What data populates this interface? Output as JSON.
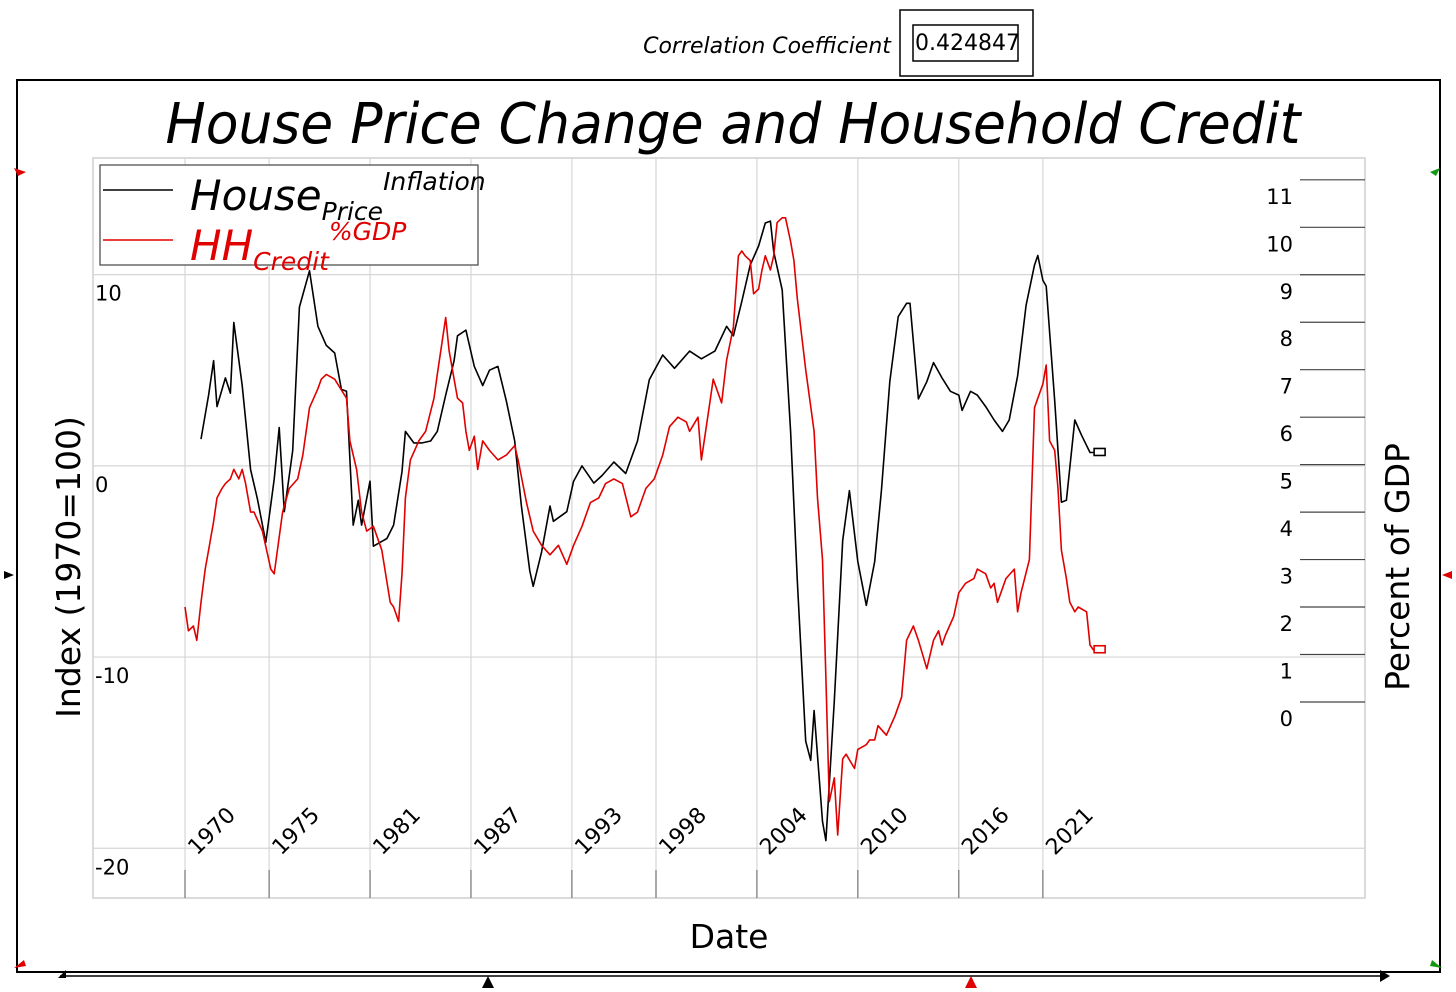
{
  "chart_data": {
    "type": "line",
    "title": "House Price Change and Household Credit",
    "correlation_label": "Correlation Coefficient",
    "correlation_coefficient": 0.424847,
    "x_label": "Date",
    "y_label": "Index (1970=100)",
    "y2_label": "Percent of GDP",
    "xlim": [
      1964.53,
      2040.15
    ],
    "xticks": [
      1970,
      1975,
      1981,
      1987,
      1993,
      1998,
      2004,
      2010,
      2016,
      2021
    ],
    "ylim": [
      -22.6,
      16.1
    ],
    "yticks": [
      -20,
      -10,
      0,
      10
    ],
    "y2lim": [
      -4.13,
      11.46
    ],
    "y2ticks": [
      0,
      1,
      2,
      3,
      4,
      5,
      6,
      7,
      8,
      9,
      10,
      11
    ],
    "grid": true,
    "legend": "upper left",
    "series": [
      {
        "name": "House",
        "subscript": "Price",
        "superscript": "Inflation",
        "color": "#000000",
        "x": [
          1970.95,
          1971.4,
          1971.7,
          1971.9,
          1972.4,
          1972.7,
          1972.9,
          1973.4,
          1973.9,
          1974.3,
          1974.8,
          1975.3,
          1975.6,
          1975.9,
          1976.4,
          1976.8,
          1977.4,
          1977.9,
          1978.4,
          1978.9,
          1979.3,
          1979.6,
          1980.0,
          1980.3,
          1980.5,
          1981.0,
          1981.2,
          1982.0,
          1982.4,
          1982.9,
          1983.1,
          1983.6,
          1984.1,
          1984.6,
          1985.0,
          1985.5,
          1986.0,
          1986.2,
          1986.7,
          1987.2,
          1987.7,
          1988.1,
          1988.6,
          1989.1,
          1989.6,
          1990.0,
          1990.5,
          1990.7,
          1991.2,
          1991.7,
          1991.9,
          1992.7,
          1993.1,
          1993.6,
          1994.3,
          1994.8,
          1995.5,
          1996.2,
          1996.9,
          1997.6,
          1998.4,
          1999.1,
          2000.0,
          2000.7,
          2001.5,
          2002.2,
          2002.6,
          2003.1,
          2003.6,
          2004.1,
          2004.5,
          2004.8,
          2005.0,
          2005.5,
          2006.0,
          2006.4,
          2006.9,
          2007.2,
          2007.4,
          2007.9,
          2008.1,
          2008.6,
          2009.1,
          2009.5,
          2010.0,
          2010.5,
          2011.0,
          2011.4,
          2011.9,
          2012.4,
          2012.9,
          2013.1,
          2013.6,
          2014.1,
          2014.5,
          2015.0,
          2015.5,
          2016.0,
          2016.2,
          2016.7,
          2017.1,
          2017.6,
          2018.1,
          2018.6,
          2019.0,
          2019.5,
          2020.0,
          2020.5,
          2020.7,
          2021.0,
          2021.2,
          2021.7,
          2022.1,
          2022.4,
          2022.9,
          2023.3,
          2023.8,
          2024.7
        ],
        "values": [
          1.4,
          3.7,
          5.5,
          3.1,
          4.6,
          3.8,
          7.5,
          4.2,
          -0.2,
          -1.7,
          -4.0,
          -0.7,
          2.0,
          -2.4,
          0.8,
          8.3,
          10.2,
          7.3,
          6.3,
          5.9,
          4.0,
          3.9,
          -3.1,
          -1.8,
          -3.1,
          -0.8,
          -4.2,
          -3.8,
          -3.1,
          -0.3,
          1.8,
          1.2,
          1.2,
          1.3,
          1.8,
          3.7,
          5.5,
          6.8,
          7.1,
          5.2,
          4.2,
          5.0,
          5.2,
          3.4,
          1.3,
          -2.1,
          -5.5,
          -6.3,
          -4.5,
          -2.1,
          -2.9,
          -2.4,
          -0.8,
          0.0,
          -0.9,
          -0.5,
          0.2,
          -0.4,
          1.3,
          4.5,
          5.8,
          5.1,
          6.0,
          5.6,
          6.0,
          7.3,
          6.8,
          8.6,
          10.5,
          11.5,
          12.7,
          12.8,
          11.2,
          9.2,
          1.8,
          -6.0,
          -14.4,
          -15.4,
          -12.8,
          -18.6,
          -19.6,
          -12.3,
          -3.9,
          -1.3,
          -5.0,
          -7.3,
          -5.0,
          -1.3,
          4.4,
          7.8,
          8.5,
          8.5,
          3.5,
          4.4,
          5.4,
          4.6,
          3.9,
          3.7,
          2.9,
          3.9,
          3.7,
          3.1,
          2.4,
          1.8,
          2.4,
          4.7,
          8.4,
          10.5,
          11.0,
          9.7,
          9.4,
          3.4,
          -1.9,
          -1.8,
          2.4,
          1.6,
          0.7,
          0.7
        ]
      },
      {
        "name": "HH",
        "subscript": "Credit",
        "superscript": "%GDP",
        "color": "#e00000",
        "axis": "y2",
        "x": [
          1970.0,
          1970.2,
          1970.5,
          1970.7,
          1970.95,
          1971.2,
          1971.4,
          1971.7,
          1971.9,
          1972.2,
          1972.4,
          1972.7,
          1972.9,
          1973.2,
          1973.4,
          1973.6,
          1973.9,
          1974.1,
          1974.6,
          1975.1,
          1975.3,
          1975.8,
          1976.2,
          1976.7,
          1977.0,
          1977.4,
          1977.9,
          1978.1,
          1978.4,
          1978.9,
          1979.6,
          1979.8,
          1980.2,
          1980.5,
          1980.8,
          1981.2,
          1981.7,
          1982.2,
          1982.4,
          1982.7,
          1982.9,
          1983.1,
          1983.4,
          1983.9,
          1984.3,
          1984.8,
          1985.0,
          1985.5,
          1985.7,
          1986.0,
          1986.2,
          1986.5,
          1986.7,
          1986.9,
          1987.2,
          1987.4,
          1987.7,
          1988.1,
          1988.6,
          1989.1,
          1989.6,
          1989.8,
          1990.3,
          1990.7,
          1991.2,
          1991.7,
          1992.2,
          1992.7,
          1993.1,
          1993.6,
          1994.1,
          1994.6,
          1995.0,
          1995.5,
          1996.0,
          1996.5,
          1996.9,
          1997.4,
          1997.9,
          1998.4,
          1998.8,
          1999.3,
          1999.8,
          2000.0,
          2000.5,
          2000.7,
          2001.2,
          2001.4,
          2001.9,
          2002.2,
          2002.6,
          2002.9,
          2003.1,
          2003.3,
          2003.6,
          2003.8,
          2004.1,
          2004.3,
          2004.5,
          2004.8,
          2005.0,
          2005.2,
          2005.5,
          2005.7,
          2006.0,
          2006.2,
          2006.4,
          2006.9,
          2007.4,
          2007.6,
          2007.9,
          2008.1,
          2008.3,
          2008.6,
          2008.8,
          2009.1,
          2009.3,
          2009.8,
          2010.0,
          2010.5,
          2010.7,
          2011.0,
          2011.2,
          2011.7,
          2012.2,
          2012.6,
          2012.9,
          2013.3,
          2013.6,
          2014.1,
          2014.5,
          2014.8,
          2015.0,
          2015.2,
          2015.7,
          2016.0,
          2016.4,
          2016.9,
          2017.1,
          2017.6,
          2017.9,
          2018.1,
          2018.3,
          2018.8,
          2019.3,
          2019.5,
          2019.7,
          2020.2,
          2020.5,
          2021.0,
          2021.2,
          2021.4,
          2021.7,
          2021.9,
          2022.1,
          2022.4,
          2022.6,
          2022.9,
          2023.1,
          2023.6,
          2023.8,
          2024.0,
          2024.7
        ],
        "values": [
          2.0,
          1.5,
          1.6,
          1.3,
          2.1,
          2.8,
          3.2,
          3.8,
          4.3,
          4.5,
          4.6,
          4.7,
          4.9,
          4.7,
          4.9,
          4.6,
          4.0,
          4.0,
          3.6,
          2.8,
          2.7,
          4.0,
          4.5,
          4.7,
          5.2,
          6.2,
          6.6,
          6.8,
          6.9,
          6.8,
          6.4,
          5.5,
          4.9,
          4.0,
          3.6,
          3.7,
          3.2,
          2.1,
          2.0,
          1.7,
          2.7,
          4.3,
          5.1,
          5.5,
          5.7,
          6.4,
          6.9,
          8.1,
          7.4,
          6.8,
          6.4,
          6.3,
          5.7,
          5.3,
          5.6,
          4.9,
          5.5,
          5.3,
          5.1,
          5.2,
          5.4,
          5.1,
          4.2,
          3.6,
          3.3,
          3.1,
          3.3,
          2.9,
          3.3,
          3.7,
          4.2,
          4.3,
          4.6,
          4.7,
          4.6,
          3.9,
          4.0,
          4.5,
          4.7,
          5.2,
          5.8,
          6.0,
          5.9,
          5.7,
          6.0,
          5.1,
          6.3,
          6.8,
          6.3,
          7.2,
          7.9,
          9.4,
          9.5,
          9.4,
          9.3,
          8.6,
          8.7,
          9.1,
          9.4,
          9.1,
          9.4,
          10.1,
          10.2,
          10.2,
          9.7,
          9.3,
          8.5,
          7.0,
          5.7,
          4.3,
          3.0,
          0.5,
          -2.1,
          -1.6,
          -2.8,
          -1.2,
          -1.1,
          -1.4,
          -1.0,
          -0.9,
          -0.8,
          -0.8,
          -0.5,
          -0.7,
          -0.3,
          0.1,
          1.3,
          1.6,
          1.3,
          0.7,
          1.3,
          1.5,
          1.2,
          1.4,
          1.8,
          2.3,
          2.5,
          2.6,
          2.8,
          2.7,
          2.4,
          2.5,
          2.1,
          2.6,
          2.8,
          1.9,
          2.3,
          3.0,
          6.2,
          6.7,
          7.1,
          5.5,
          5.3,
          4.5,
          3.2,
          2.6,
          2.1,
          1.9,
          2.0,
          1.9,
          1.2,
          1.1,
          1.1
        ]
      }
    ]
  }
}
